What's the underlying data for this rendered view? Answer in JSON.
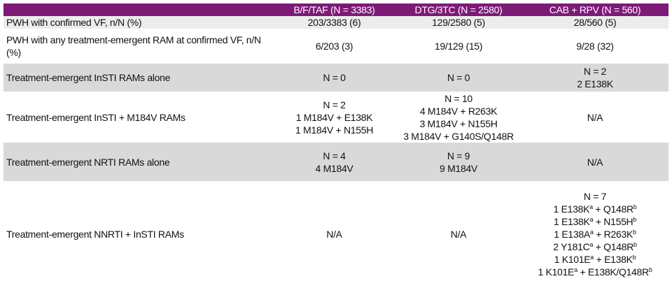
{
  "table": {
    "columns": [
      "B/F/TAF (N = 3383)",
      "DTG/3TC (N = 2580)",
      "CAB + RPV (N = 560)"
    ],
    "rows": [
      {
        "label": "PWH with confirmed VF, n/N (%)",
        "cells": [
          [
            "203/3383 (6)"
          ],
          [
            "129/2580 (5)"
          ],
          [
            "28/560 (5)"
          ]
        ]
      },
      {
        "label": "PWH with any treatment-emergent RAM at confirmed VF, n/N (%)",
        "cells": [
          [
            "6/203 (3)"
          ],
          [
            "19/129 (15)"
          ],
          [
            "9/28 (32)"
          ]
        ]
      },
      {
        "label": "Treatment-emergent InSTI RAMs alone",
        "cells": [
          [
            "N = 0"
          ],
          [
            "N = 0"
          ],
          [
            "N = 2",
            "2 E138K"
          ]
        ]
      },
      {
        "label": "Treatment-emergent InSTI + M184V RAMs",
        "cells": [
          [
            "N = 2",
            "1 M184V + E138K",
            "1 M184V + N155H"
          ],
          [
            "N = 10",
            "4 M184V + R263K",
            "3 M184V + N155H",
            "3 M184V + G140S/Q148R"
          ],
          [
            "N/A"
          ]
        ]
      },
      {
        "label": "Treatment-emergent NRTI RAMs alone",
        "cells": [
          [
            "N = 4",
            "4 M184V"
          ],
          [
            "N = 9",
            "9 M184V"
          ],
          [
            "N/A"
          ]
        ]
      },
      {
        "label": "Treatment-emergent NNRTI + InSTI RAMs",
        "cells": [
          [
            "N/A"
          ],
          [
            "N/A"
          ],
          [
            "N = 7",
            [
              {
                "text": "1 E138K",
                "sup": "a"
              },
              {
                "text": " + Q148R",
                "sup": "b"
              }
            ],
            [
              {
                "text": "1 E138K",
                "sup": "a"
              },
              {
                "text": " + N155H",
                "sup": "b"
              }
            ],
            [
              {
                "text": "1 E138A",
                "sup": "a"
              },
              {
                "text": " + R263K",
                "sup": "b"
              }
            ],
            [
              {
                "text": "2 Y181C",
                "sup": "a"
              },
              {
                "text": " + Q148R",
                "sup": "b"
              }
            ],
            [
              {
                "text": "1 K101E",
                "sup": "a"
              },
              {
                "text": " + E138K",
                "sup": "b"
              }
            ],
            [
              {
                "text": "1 K101E",
                "sup": "a"
              },
              {
                "text": " + E138K/Q148R",
                "sup": "b"
              }
            ]
          ]
        ]
      }
    ]
  }
}
